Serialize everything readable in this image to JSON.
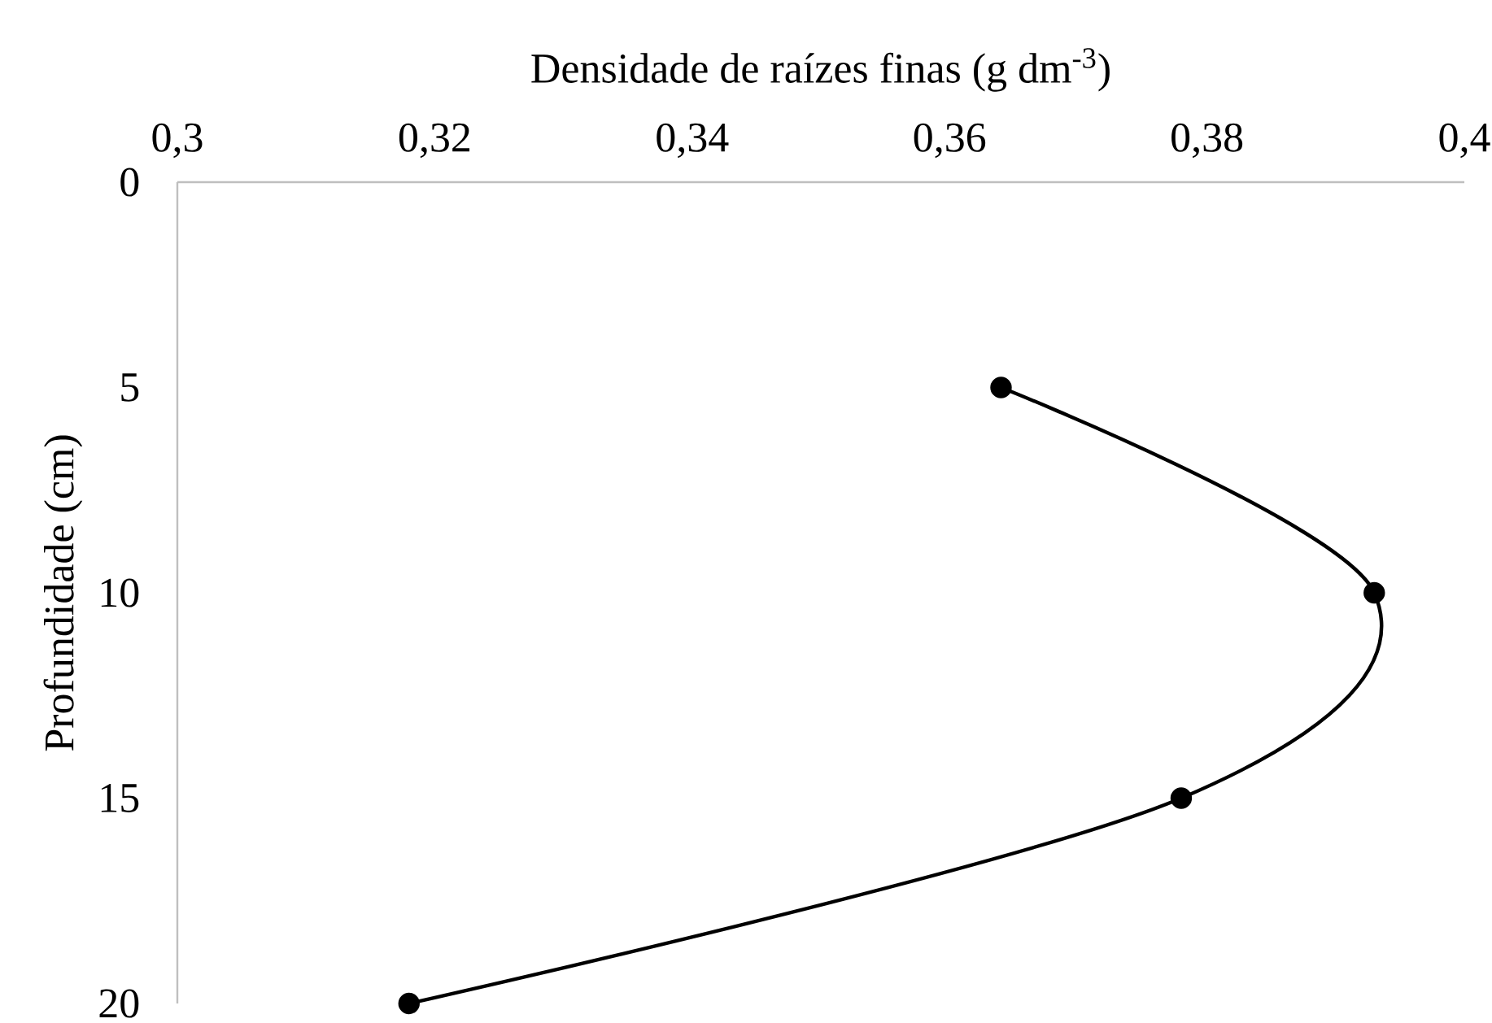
{
  "chart_data": {
    "type": "line",
    "xlabel": "Densidade de raízes finas (g dm$^{-3}$)",
    "ylabel": "Profundidade (cm)",
    "x": [
      0.364,
      0.393,
      0.378,
      0.318
    ],
    "series": [
      {
        "color": "#000000",
        "values": [
          5,
          10,
          15,
          20
        ]
      }
    ],
    "xlim": [
      0.3,
      0.4
    ],
    "ylim": [
      20,
      0
    ],
    "xticks": [
      {
        "value": 0.3,
        "label": "0,3"
      },
      {
        "value": 0.32,
        "label": "0,32"
      },
      {
        "value": 0.34,
        "label": "0,34"
      },
      {
        "value": 0.36,
        "label": "0,36"
      },
      {
        "value": 0.38,
        "label": "0,38"
      },
      {
        "value": 0.4,
        "label": "0,4"
      }
    ],
    "yticks": [
      0,
      5,
      10,
      15,
      20
    ],
    "marker": "circle",
    "line_style": "solid"
  }
}
